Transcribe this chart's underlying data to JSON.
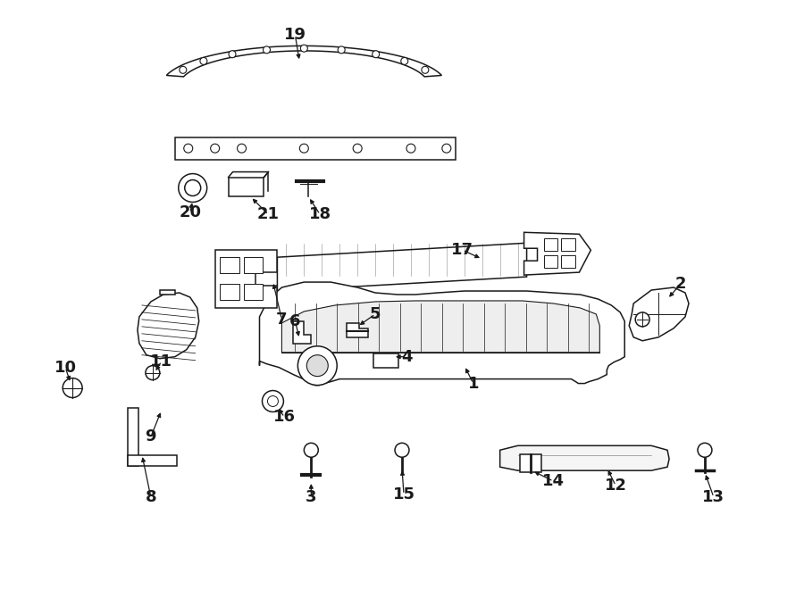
{
  "bg_color": "#ffffff",
  "line_color": "#1a1a1a",
  "lw": 1.1
}
